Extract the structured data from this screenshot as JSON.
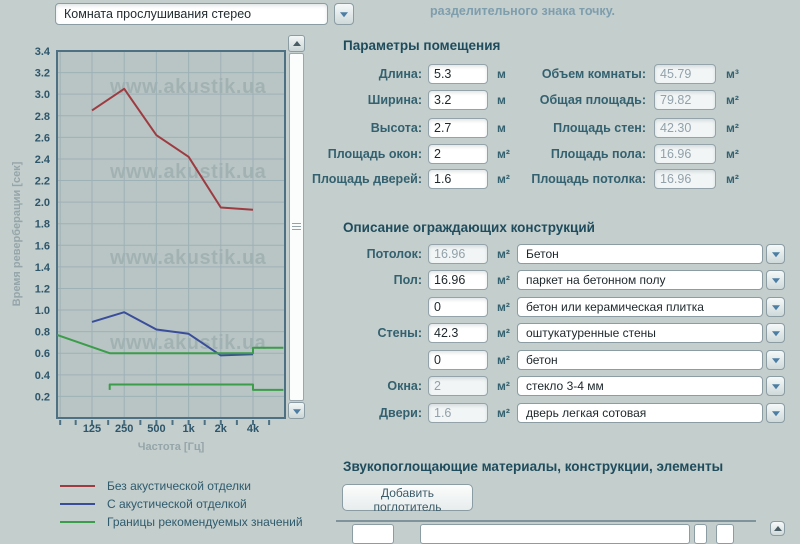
{
  "header": {
    "room_preset": "Комната прослушивания стерео",
    "note": "разделительного знака точку."
  },
  "chart": {
    "type": "line",
    "xlabel": "Частота [Гц]",
    "ylabel": "Время реверберации [сек]",
    "watermark": "www.akustik.ua",
    "ymin": 0,
    "ymax": 3.4,
    "ytick_step": 0.2,
    "xticks": [
      {
        "f": 125,
        "label": "125"
      },
      {
        "f": 250,
        "label": "250"
      },
      {
        "f": 500,
        "label": "500"
      },
      {
        "f": 1000,
        "label": "1k"
      },
      {
        "f": 2000,
        "label": "2k"
      },
      {
        "f": 4000,
        "label": "4k"
      }
    ],
    "grid_freqs": [
      63,
      125,
      250,
      500,
      1000,
      2000,
      4000
    ],
    "minor_tick_freqs": [
      63,
      88,
      125,
      177,
      250,
      354,
      500,
      707,
      1000,
      1414,
      2000,
      2828,
      4000,
      5657
    ],
    "series": [
      {
        "name": "Без акустической отделки",
        "color": "#9e3b41",
        "points": [
          [
            125,
            2.85
          ],
          [
            250,
            3.05
          ],
          [
            500,
            2.62
          ],
          [
            1000,
            2.42
          ],
          [
            2000,
            1.95
          ],
          [
            4000,
            1.93
          ]
        ]
      },
      {
        "name": "С акустической отделкой",
        "color": "#3a4d9b",
        "points": [
          [
            125,
            0.89
          ],
          [
            250,
            0.98
          ],
          [
            500,
            0.82
          ],
          [
            1000,
            0.78
          ],
          [
            2000,
            0.58
          ],
          [
            4000,
            0.59
          ]
        ]
      },
      {
        "name": "Границы рекомендуемых значений",
        "color": "#3b9c49",
        "points": [
          [
            59,
            0.77
          ],
          [
            183,
            0.6
          ],
          [
            4000,
            0.6
          ],
          [
            4000,
            0.65
          ],
          [
            7700,
            0.65
          ]
        ],
        "points2": [
          [
            183,
            0.26
          ],
          [
            183,
            0.31
          ],
          [
            4000,
            0.31
          ],
          [
            4000,
            0.26
          ],
          [
            7700,
            0.26
          ]
        ]
      }
    ]
  },
  "room_params": {
    "title": "Параметры помещения",
    "left": [
      {
        "label": "Длина:",
        "value": "5.3",
        "unit": "м",
        "readonly": false
      },
      {
        "label": "Ширина:",
        "value": "3.2",
        "unit": "м",
        "readonly": false
      },
      {
        "label": "Высота:",
        "value": "2.7",
        "unit": "м",
        "readonly": false
      },
      {
        "label": "Площадь окон:",
        "value": "2",
        "unit": "м²",
        "readonly": false
      },
      {
        "label": "Площадь дверей:",
        "value": "1.6",
        "unit": "м²",
        "readonly": false
      }
    ],
    "right": [
      {
        "label": "Объем комнаты:",
        "value": "45.79",
        "unit": "м³",
        "readonly": true
      },
      {
        "label": "Общая площадь:",
        "value": "79.82",
        "unit": "м²",
        "readonly": true
      },
      {
        "label": "Площадь стен:",
        "value": "42.30",
        "unit": "м²",
        "readonly": true
      },
      {
        "label": "Площадь пола:",
        "value": "16.96",
        "unit": "м²",
        "readonly": true
      },
      {
        "label": "Площадь потолка:",
        "value": "16.96",
        "unit": "м²",
        "readonly": true
      }
    ]
  },
  "constructions": {
    "title": "Описание ограждающих конструкций",
    "rows": [
      {
        "label": "Потолок:",
        "area": "16.96",
        "unit": "м²",
        "readonly": true,
        "material": "Бетон"
      },
      {
        "label": "Пол:",
        "area": "16.96",
        "unit": "м²",
        "readonly": false,
        "material": "паркет на бетонном полу"
      },
      {
        "label": "",
        "area": "0",
        "unit": "м²",
        "readonly": false,
        "material": "бетон или керамическая плитка"
      },
      {
        "label": "Стены:",
        "area": "42.3",
        "unit": "м²",
        "readonly": false,
        "material": "оштукатуренные стены"
      },
      {
        "label": "",
        "area": "0",
        "unit": "м²",
        "readonly": false,
        "material": "бетон"
      },
      {
        "label": "Окна:",
        "area": "2",
        "unit": "м²",
        "readonly": true,
        "material": "стекло 3-4 мм"
      },
      {
        "label": "Двери:",
        "area": "1.6",
        "unit": "м²",
        "readonly": true,
        "material": "дверь легкая сотовая"
      }
    ]
  },
  "absorbers": {
    "title": "Звукопоглощающие материалы, конструкции, элементы",
    "add_button": "Добавить поглотитель"
  }
}
